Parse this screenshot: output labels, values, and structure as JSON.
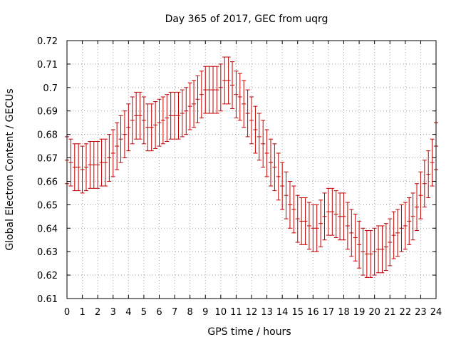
{
  "chart_data": {
    "type": "scatter",
    "title": "Day 365 of 2017, GEC from uqrg",
    "xlabel": "GPS time / hours",
    "ylabel": "Global Electron Content / GECUs",
    "xlim": [
      0,
      24
    ],
    "ylim": [
      0.61,
      0.72
    ],
    "x_ticks": [
      "0",
      "1",
      "2",
      "3",
      "4",
      "5",
      "6",
      "7",
      "8",
      "9",
      "10",
      "11",
      "12",
      "13",
      "14",
      "15",
      "16",
      "17",
      "18",
      "19",
      "20",
      "21",
      "22",
      "23",
      "24"
    ],
    "y_ticks": [
      "0.61",
      "0.62",
      "0.63",
      "0.64",
      "0.65",
      "0.66",
      "0.67",
      "0.68",
      "0.69",
      "0.7",
      "0.71",
      "0.72"
    ],
    "grid": true,
    "error_bar": 0.01,
    "color": "#c00000",
    "series": [
      {
        "x": [
          0,
          0.25,
          0.5,
          0.75,
          1,
          1.25,
          1.5,
          1.75,
          2,
          2.25,
          2.5,
          2.75,
          3,
          3.25,
          3.5,
          3.75,
          4,
          4.25,
          4.5,
          4.75,
          5,
          5.25,
          5.5,
          5.75,
          6,
          6.25,
          6.5,
          6.75,
          7,
          7.25,
          7.5,
          7.75,
          8,
          8.25,
          8.5,
          8.75,
          9,
          9.25,
          9.5,
          9.75,
          10,
          10.25,
          10.5,
          10.75,
          11,
          11.25,
          11.5,
          11.75,
          12,
          12.25,
          12.5,
          12.75,
          13,
          13.25,
          13.5,
          13.75,
          14,
          14.25,
          14.5,
          14.75,
          15,
          15.25,
          15.5,
          15.75,
          16,
          16.25,
          16.5,
          16.75,
          17,
          17.25,
          17.5,
          17.75,
          18,
          18.25,
          18.5,
          18.75,
          19,
          19.25,
          19.5,
          19.75,
          20,
          20.25,
          20.5,
          20.75,
          21,
          21.25,
          21.5,
          21.75,
          22,
          22.25,
          22.5,
          22.75,
          23,
          23.25,
          23.5,
          23.75,
          24
        ],
        "y": [
          0.669,
          0.668,
          0.666,
          0.666,
          0.665,
          0.666,
          0.667,
          0.667,
          0.667,
          0.668,
          0.668,
          0.67,
          0.672,
          0.675,
          0.678,
          0.68,
          0.683,
          0.686,
          0.688,
          0.688,
          0.686,
          0.683,
          0.683,
          0.684,
          0.685,
          0.686,
          0.687,
          0.688,
          0.688,
          0.688,
          0.689,
          0.69,
          0.692,
          0.693,
          0.695,
          0.697,
          0.699,
          0.699,
          0.699,
          0.699,
          0.7,
          0.703,
          0.703,
          0.701,
          0.697,
          0.696,
          0.693,
          0.689,
          0.686,
          0.682,
          0.679,
          0.676,
          0.672,
          0.668,
          0.666,
          0.662,
          0.658,
          0.654,
          0.65,
          0.648,
          0.644,
          0.643,
          0.643,
          0.641,
          0.64,
          0.64,
          0.642,
          0.645,
          0.647,
          0.647,
          0.646,
          0.645,
          0.645,
          0.641,
          0.638,
          0.636,
          0.633,
          0.63,
          0.629,
          0.629,
          0.63,
          0.631,
          0.631,
          0.632,
          0.634,
          0.637,
          0.638,
          0.64,
          0.641,
          0.643,
          0.645,
          0.649,
          0.654,
          0.659,
          0.663,
          0.668,
          0.675
        ]
      }
    ]
  }
}
